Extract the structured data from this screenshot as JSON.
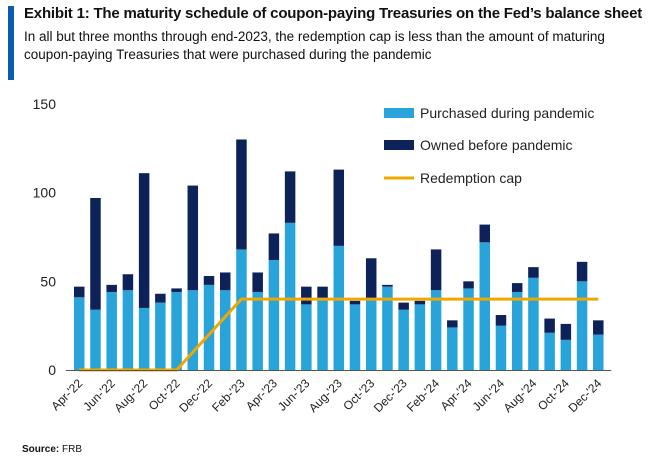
{
  "header": {
    "title": "Exhibit 1: The maturity schedule of coupon-paying Treasuries on the Fed’s balance sheet",
    "subtitle": "In all but three months through end-2023, the redemption cap is less than the amount of maturing coupon-paying Treasuries that were purchased during the pandemic"
  },
  "footer": {
    "source_label": "Source:",
    "source_value": "FRB"
  },
  "colors": {
    "accent": "#0c5bb5",
    "purchased": "#29a4db",
    "owned": "#0d2259",
    "cap": "#f0a800"
  },
  "chart_data": {
    "type": "bar",
    "stacked": true,
    "title": "The maturity schedule of coupon-paying Treasuries on the Fed’s balance sheet",
    "ylim": [
      0,
      150
    ],
    "yticks": [
      0,
      50,
      100,
      150
    ],
    "x_tick_labels": [
      "Apr-'22",
      "Jun-'22",
      "Aug-'22",
      "Oct-'22",
      "Dec-'22",
      "Feb-'23",
      "Apr-'23",
      "Jun-'23",
      "Aug-'23",
      "Oct-'23",
      "Dec-'23",
      "Feb-'24",
      "Apr-'24",
      "Jun-'24",
      "Aug-'24",
      "Oct-'24",
      "Dec-'24"
    ],
    "months": [
      "Apr-'22",
      "May-'22",
      "Jun-'22",
      "Jul-'22",
      "Aug-'22",
      "Sep-'22",
      "Oct-'22",
      "Nov-'22",
      "Dec-'22",
      "Jan-'23",
      "Feb-'23",
      "Mar-'23",
      "Apr-'23",
      "May-'23",
      "Jun-'23",
      "Jul-'23",
      "Aug-'23",
      "Sep-'23",
      "Oct-'23",
      "Nov-'23",
      "Dec-'23",
      "Jan-'24",
      "Feb-'24",
      "Mar-'24",
      "Apr-'24",
      "May-'24",
      "Jun-'24",
      "Jul-'24",
      "Aug-'24",
      "Sep-'24",
      "Oct-'24",
      "Nov-'24",
      "Dec-'24"
    ],
    "series": [
      {
        "name": "Purchased during pandemic",
        "values": [
          41,
          34,
          44,
          45,
          35,
          38,
          44,
          45,
          48,
          45,
          68,
          44,
          62,
          83,
          37,
          40,
          70,
          37,
          40,
          47,
          34,
          37,
          45,
          24,
          46,
          72,
          25,
          44,
          52,
          21,
          17,
          50,
          20
        ]
      },
      {
        "name": "Owned before pandemic",
        "values": [
          6,
          63,
          4,
          9,
          76,
          5,
          2,
          59,
          5,
          10,
          62,
          11,
          15,
          29,
          10,
          7,
          43,
          2,
          23,
          1,
          4,
          2,
          23,
          4,
          4,
          10,
          6,
          5,
          6,
          8,
          9,
          11,
          8
        ]
      }
    ],
    "line_series": {
      "name": "Redemption cap",
      "values": [
        0,
        0,
        0,
        0,
        0,
        0,
        0,
        10,
        20,
        30,
        40,
        40,
        40,
        40,
        40,
        40,
        40,
        40,
        40,
        40,
        40,
        40,
        40,
        40,
        40,
        40,
        40,
        40,
        40,
        40,
        40,
        40,
        40
      ]
    },
    "legend": [
      "Purchased during pandemic",
      "Owned before pandemic",
      "Redemption cap"
    ],
    "legend_position": "top-right",
    "xlabel": "",
    "ylabel": ""
  }
}
